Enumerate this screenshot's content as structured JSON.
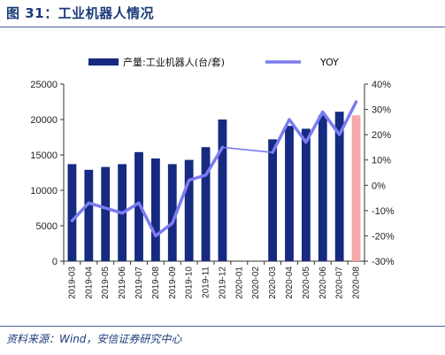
{
  "figure": {
    "title": "图 31：工业机器人情况",
    "source": "资料来源：Wind，安信证券研究中心"
  },
  "colors": {
    "bar": "#152a80",
    "bar_highlight": "#f4a9a8",
    "line": "#7b7bf2",
    "rule": "#4a5f9a"
  },
  "chart_data": {
    "type": "bar",
    "categories": [
      "2019-03",
      "2019-04",
      "2019-05",
      "2019-06",
      "2019-07",
      "2019-08",
      "2019-09",
      "2019-10",
      "2019-11",
      "2019-12",
      "2020-01",
      "2020-02",
      "2020-03",
      "2020-04",
      "2020-05",
      "2020-06",
      "2020-07",
      "2020-08"
    ],
    "series": [
      {
        "name": "产量:工业机器人(台/套)",
        "type": "bar",
        "axis": "left",
        "values": [
          13700,
          12900,
          13300,
          13700,
          15400,
          14500,
          13700,
          14300,
          16100,
          20000,
          null,
          null,
          17200,
          19100,
          18700,
          20600,
          21100,
          20600
        ],
        "highlight_index": 17
      },
      {
        "name": "YOY",
        "type": "line",
        "axis": "right",
        "values": [
          -14,
          -7,
          -9,
          -11,
          -7,
          -20,
          -15,
          2,
          4,
          15,
          null,
          null,
          13,
          26,
          17,
          29,
          20,
          33
        ]
      }
    ],
    "ylim_left": [
      0,
      25000
    ],
    "yticks_left": [
      0,
      5000,
      10000,
      15000,
      20000,
      25000
    ],
    "yticks_left_labels": [
      "0",
      "5000",
      "10000",
      "15000",
      "20000",
      "25000"
    ],
    "ylim_right": [
      -30,
      40
    ],
    "yticks_right": [
      -30,
      -20,
      -10,
      0,
      10,
      20,
      30,
      40
    ],
    "yticks_right_labels": [
      "-30%",
      "-20%",
      "-10%",
      "0%",
      "10%",
      "20%",
      "30%",
      "40%"
    ],
    "legend_position": "top",
    "grid": false
  }
}
